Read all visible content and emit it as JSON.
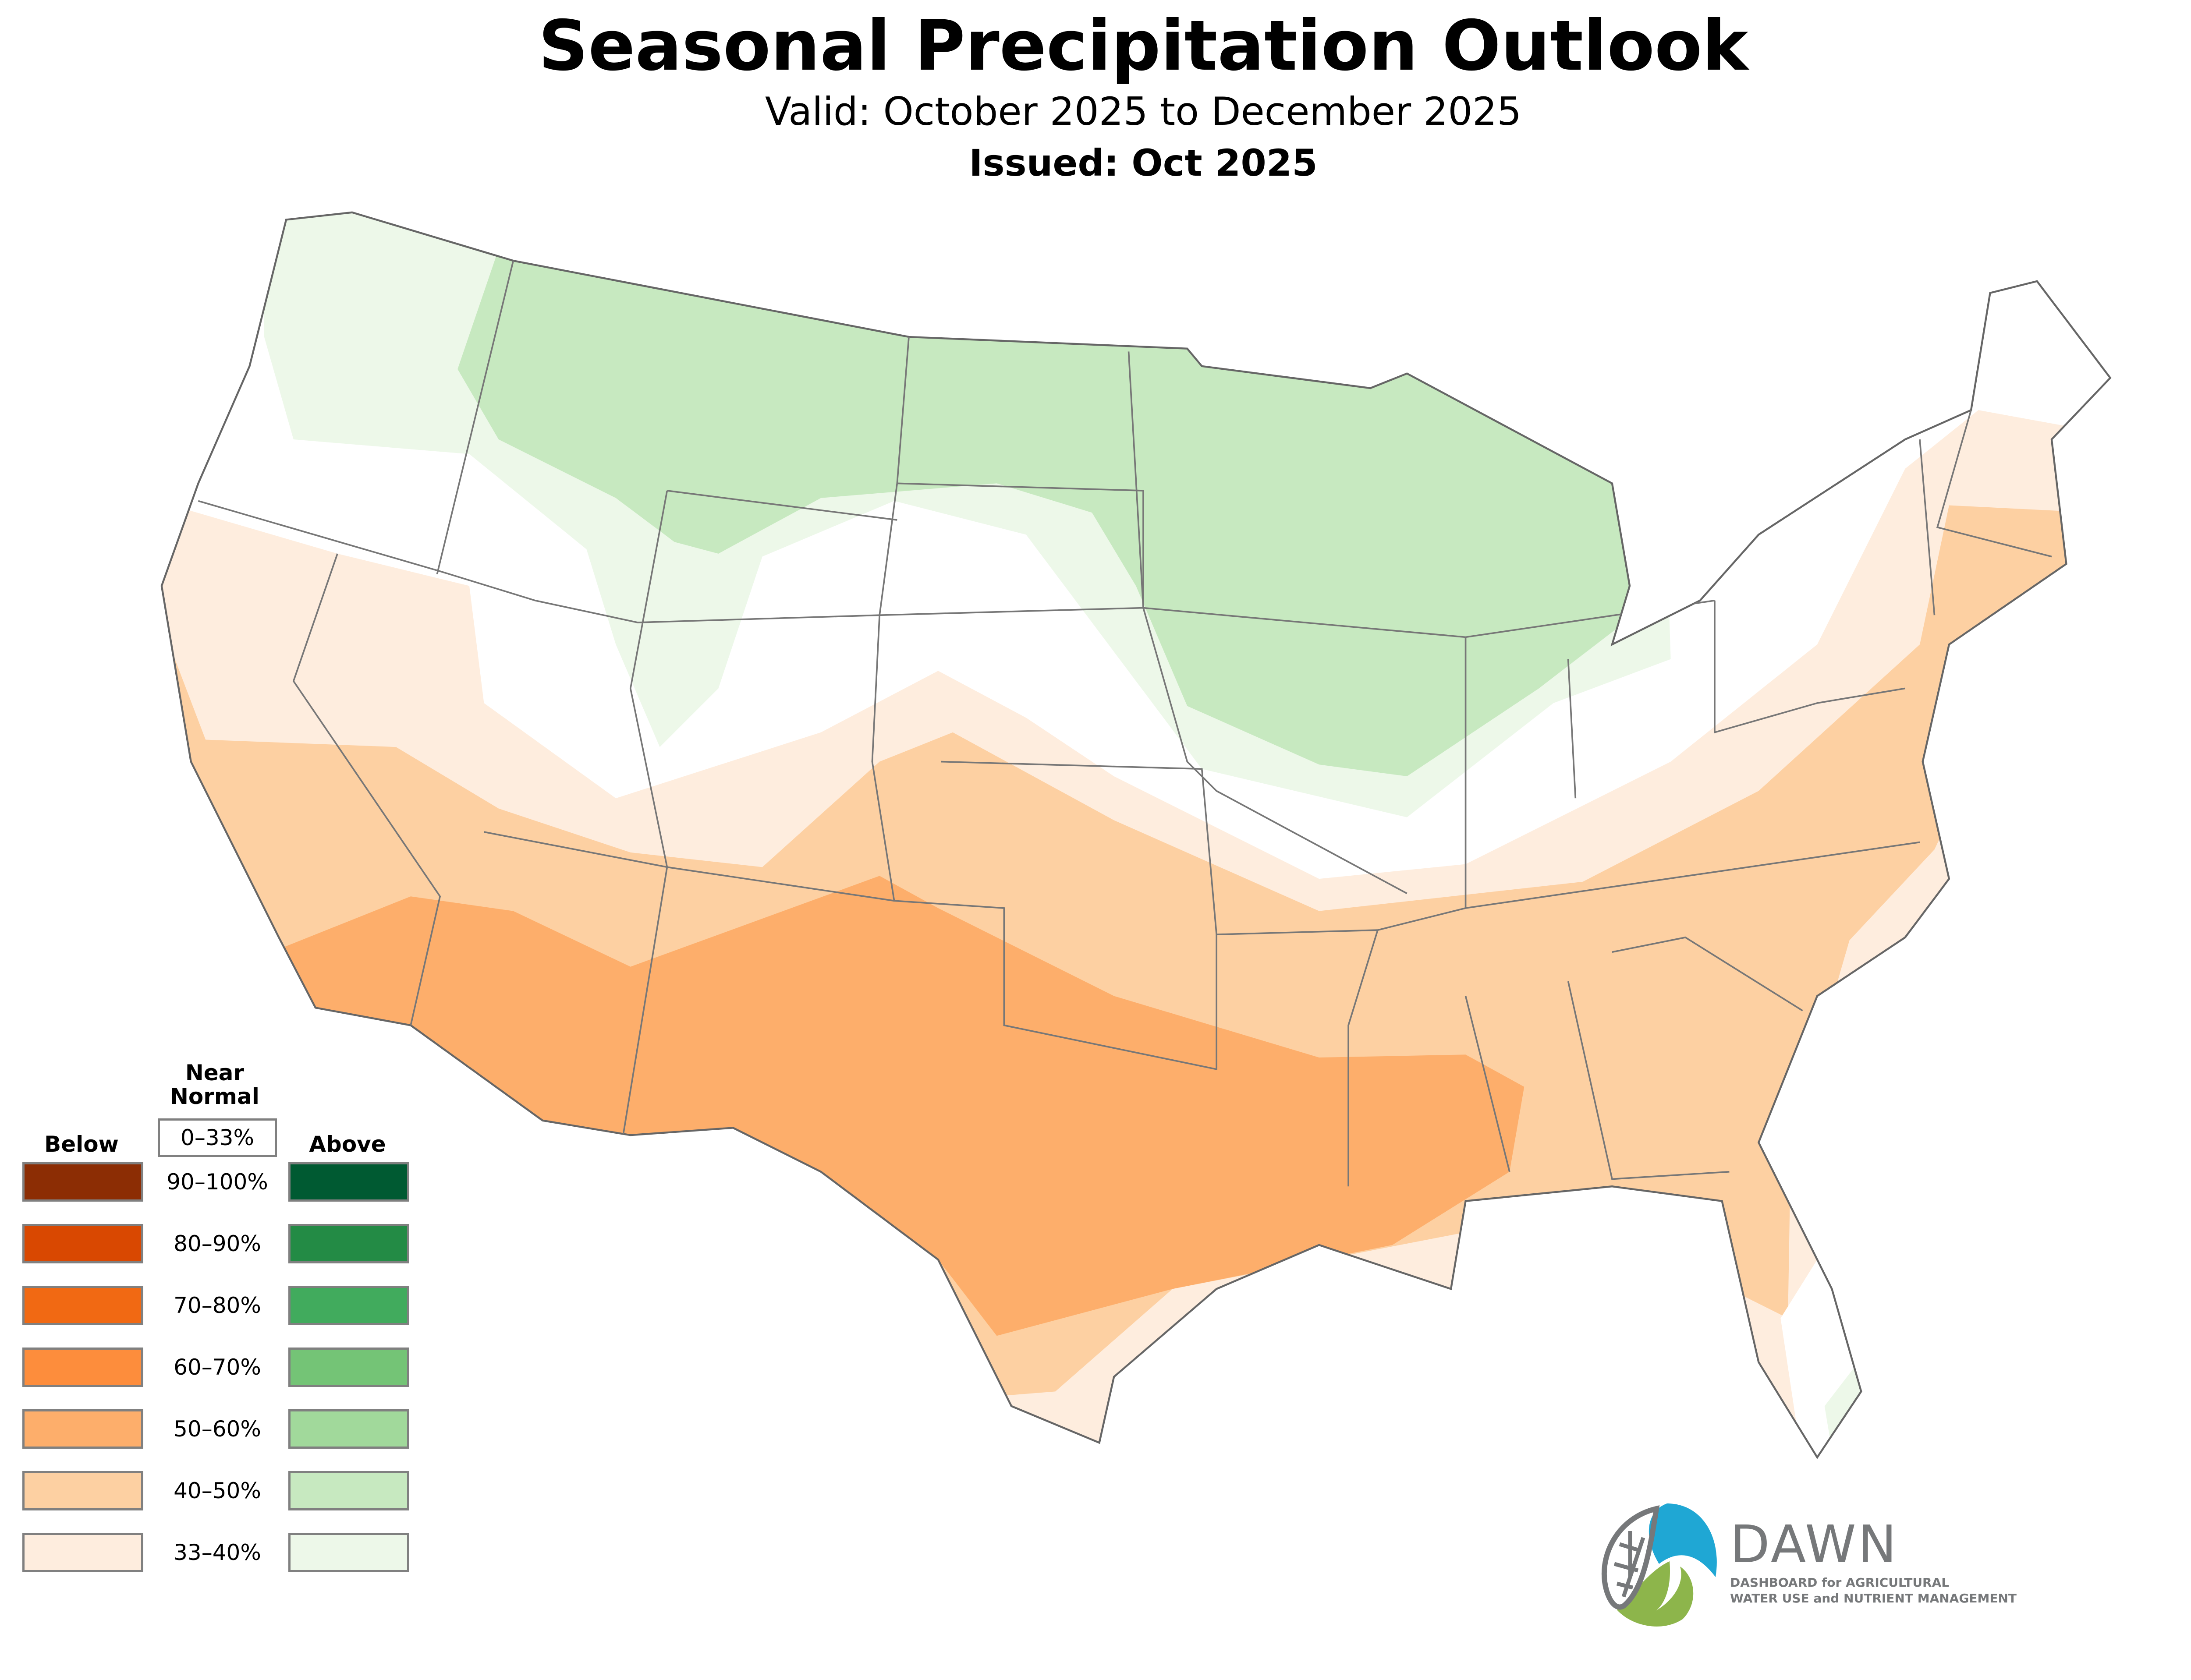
{
  "header": {
    "title": "Seasonal Precipitation Outlook",
    "valid": "Valid: October 2025 to December 2025",
    "issued": "Issued: Oct 2025"
  },
  "legend": {
    "below_heading": "Below",
    "above_heading": "Above",
    "near_normal_line1": "Near",
    "near_normal_line2": "Normal",
    "near_normal_range": "0–33%",
    "near_normal_color": "#ffffff",
    "rows": [
      {
        "range": "90–100%",
        "below_color": "#8c2d04",
        "above_color": "#005a32"
      },
      {
        "range": "80–90%",
        "below_color": "#d94801",
        "above_color": "#238b45"
      },
      {
        "range": "70–80%",
        "below_color": "#f16913",
        "above_color": "#41ab5d"
      },
      {
        "range": "60–70%",
        "below_color": "#fd8d3c",
        "above_color": "#74c476"
      },
      {
        "range": "50–60%",
        "below_color": "#fdae6b",
        "above_color": "#a1d99b"
      },
      {
        "range": "40–50%",
        "below_color": "#fdd0a2",
        "above_color": "#c7e9c0"
      },
      {
        "range": "33–40%",
        "below_color": "#feedde",
        "above_color": "#edf8e9"
      }
    ]
  },
  "logo": {
    "name": "DAWN",
    "tagline_line1": "DASHBOARD for AGRICULTURAL",
    "tagline_line2": "WATER USE and NUTRIENT MANAGEMENT",
    "blue": "#1fa7d4",
    "green": "#8db54b",
    "gray": "#76787a"
  }
}
